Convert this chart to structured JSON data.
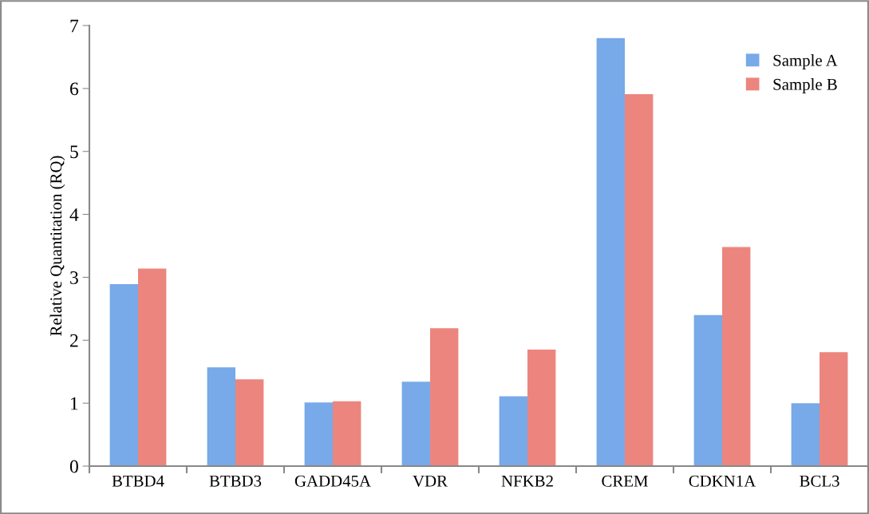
{
  "chart_data": {
    "type": "bar",
    "ylabel": "Relative Quantitation (RQ)",
    "categories": [
      "BTBD4",
      "BTBD3",
      "GADD45A",
      "VDR",
      "NFKB2",
      "CREM",
      "CDKN1A",
      "BCL3"
    ],
    "series": [
      {
        "name": "Sample A",
        "color": "#78a9e8",
        "values": [
          2.89,
          1.57,
          1.01,
          1.34,
          1.11,
          6.8,
          2.4,
          1.0
        ]
      },
      {
        "name": "Sample B",
        "color": "#ec857d",
        "values": [
          3.14,
          1.38,
          1.03,
          2.19,
          1.85,
          5.91,
          3.48,
          1.81
        ]
      }
    ],
    "ylim": [
      0,
      7
    ],
    "yticks": [
      0,
      1,
      2,
      3,
      4,
      5,
      6,
      7
    ],
    "grid": false,
    "legend": "top right"
  }
}
